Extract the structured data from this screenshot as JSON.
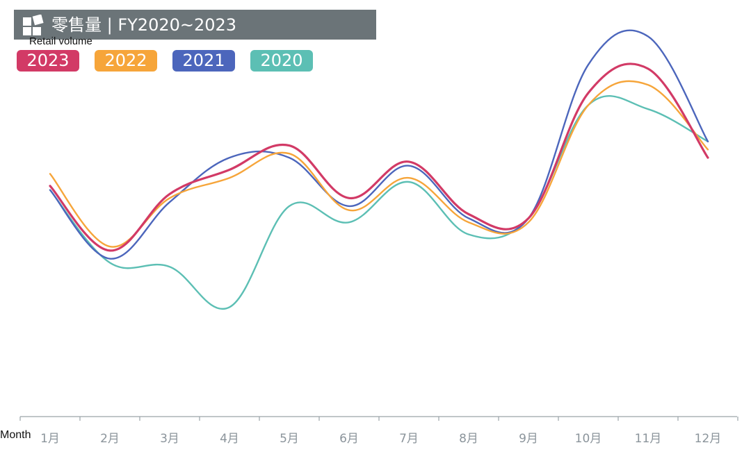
{
  "header": {
    "title": "零售量 | FY2020~2023",
    "title_bar_color": "#6b7478",
    "logo_icon": "brand-logo-icon"
  },
  "chart_data": {
    "type": "line",
    "title": "零售量 | FY2020~2023",
    "ylabel": "Retail volume",
    "xlabel": "Month",
    "categories": [
      "1月",
      "2月",
      "3月",
      "4月",
      "5月",
      "6月",
      "7月",
      "8月",
      "9月",
      "10月",
      "11月",
      "12月"
    ],
    "ylim": [
      0,
      100
    ],
    "y_axis_visible": false,
    "grid": false,
    "legend_position": "top-left",
    "series": [
      {
        "name": "2023",
        "color": "#d23a66",
        "values": [
          60,
          44,
          58,
          64,
          70,
          57,
          66,
          53,
          52,
          83,
          89,
          67
        ]
      },
      {
        "name": "2022",
        "color": "#f6a53a",
        "values": [
          63,
          45,
          57,
          62,
          68,
          54,
          62,
          51,
          51,
          80,
          85,
          69
        ]
      },
      {
        "name": "2021",
        "color": "#4c66bc",
        "values": [
          59,
          42,
          56,
          67,
          67,
          55,
          65,
          52,
          52,
          90,
          97,
          71
        ]
      },
      {
        "name": "2020",
        "color": "#5cbfb4",
        "values": [
          59,
          41,
          40,
          30,
          55,
          51,
          61,
          48,
          52,
          80,
          79,
          71
        ]
      }
    ]
  }
}
